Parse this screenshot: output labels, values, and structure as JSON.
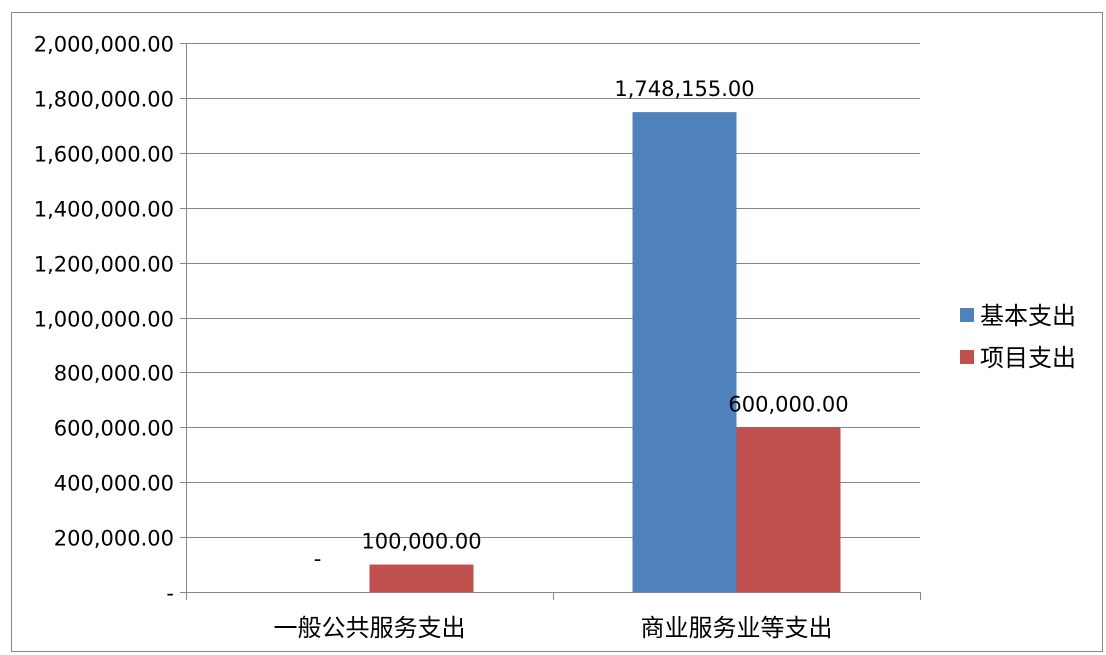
{
  "chart_data": {
    "type": "bar",
    "categories": [
      "一般公共服务支出",
      "商业服务业等支出"
    ],
    "series": [
      {
        "name": "基本支出",
        "color": "#4F81BD",
        "values": [
          0,
          1748155
        ],
        "labels": [
          "-",
          "1,748,155.00"
        ]
      },
      {
        "name": "项目支出",
        "color": "#C0504D",
        "values": [
          100000,
          600000
        ],
        "labels": [
          "100,000.00",
          "600,000.00"
        ]
      }
    ],
    "ylim": [
      0,
      2000000
    ],
    "yticks": [
      {
        "value": 0,
        "label": "-"
      },
      {
        "value": 200000,
        "label": "200,000.00"
      },
      {
        "value": 400000,
        "label": "400,000.00"
      },
      {
        "value": 600000,
        "label": "600,000.00"
      },
      {
        "value": 800000,
        "label": "800,000.00"
      },
      {
        "value": 1000000,
        "label": "1,000,000.00"
      },
      {
        "value": 1200000,
        "label": "1,200,000.00"
      },
      {
        "value": 1400000,
        "label": "1,400,000.00"
      },
      {
        "value": 1600000,
        "label": "1,600,000.00"
      },
      {
        "value": 1800000,
        "label": "1,800,000.00"
      },
      {
        "value": 2000000,
        "label": "2,000,000.00"
      }
    ],
    "grid": true,
    "legend_position": "right",
    "title": "",
    "xlabel": "",
    "ylabel": ""
  }
}
